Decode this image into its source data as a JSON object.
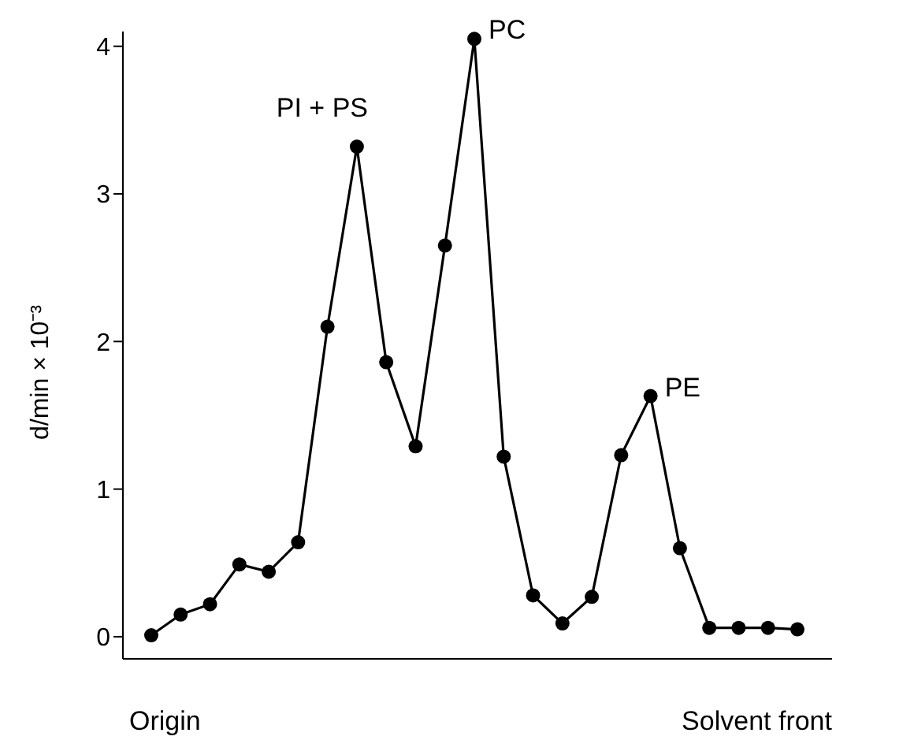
{
  "chart_data": {
    "type": "line",
    "ylabel": "d/min × 10⁻³",
    "categories": [
      null,
      null,
      null,
      null,
      null,
      null,
      null,
      null,
      null,
      null,
      null,
      null,
      null,
      null,
      null,
      null,
      null,
      null,
      null,
      null,
      null,
      null,
      null
    ],
    "series": [
      {
        "color": "#000000",
        "values": [
          0.01,
          0.15,
          0.22,
          0.49,
          0.44,
          0.64,
          2.1,
          3.32,
          1.86,
          1.29,
          2.65,
          4.05,
          1.22,
          0.28,
          0.09,
          0.27,
          1.23,
          1.63,
          0.6,
          0.06,
          0.06,
          0.06,
          0.05
        ]
      }
    ],
    "ylim": [
      -0.15,
      4.1
    ],
    "yticks": [
      0,
      1,
      2,
      3,
      4
    ],
    "marker": "circle",
    "line_style": "solid",
    "grid": false,
    "legend": false,
    "annotations": [
      "PI + PS",
      "PC",
      "PE",
      "Origin",
      "Solvent front"
    ]
  }
}
